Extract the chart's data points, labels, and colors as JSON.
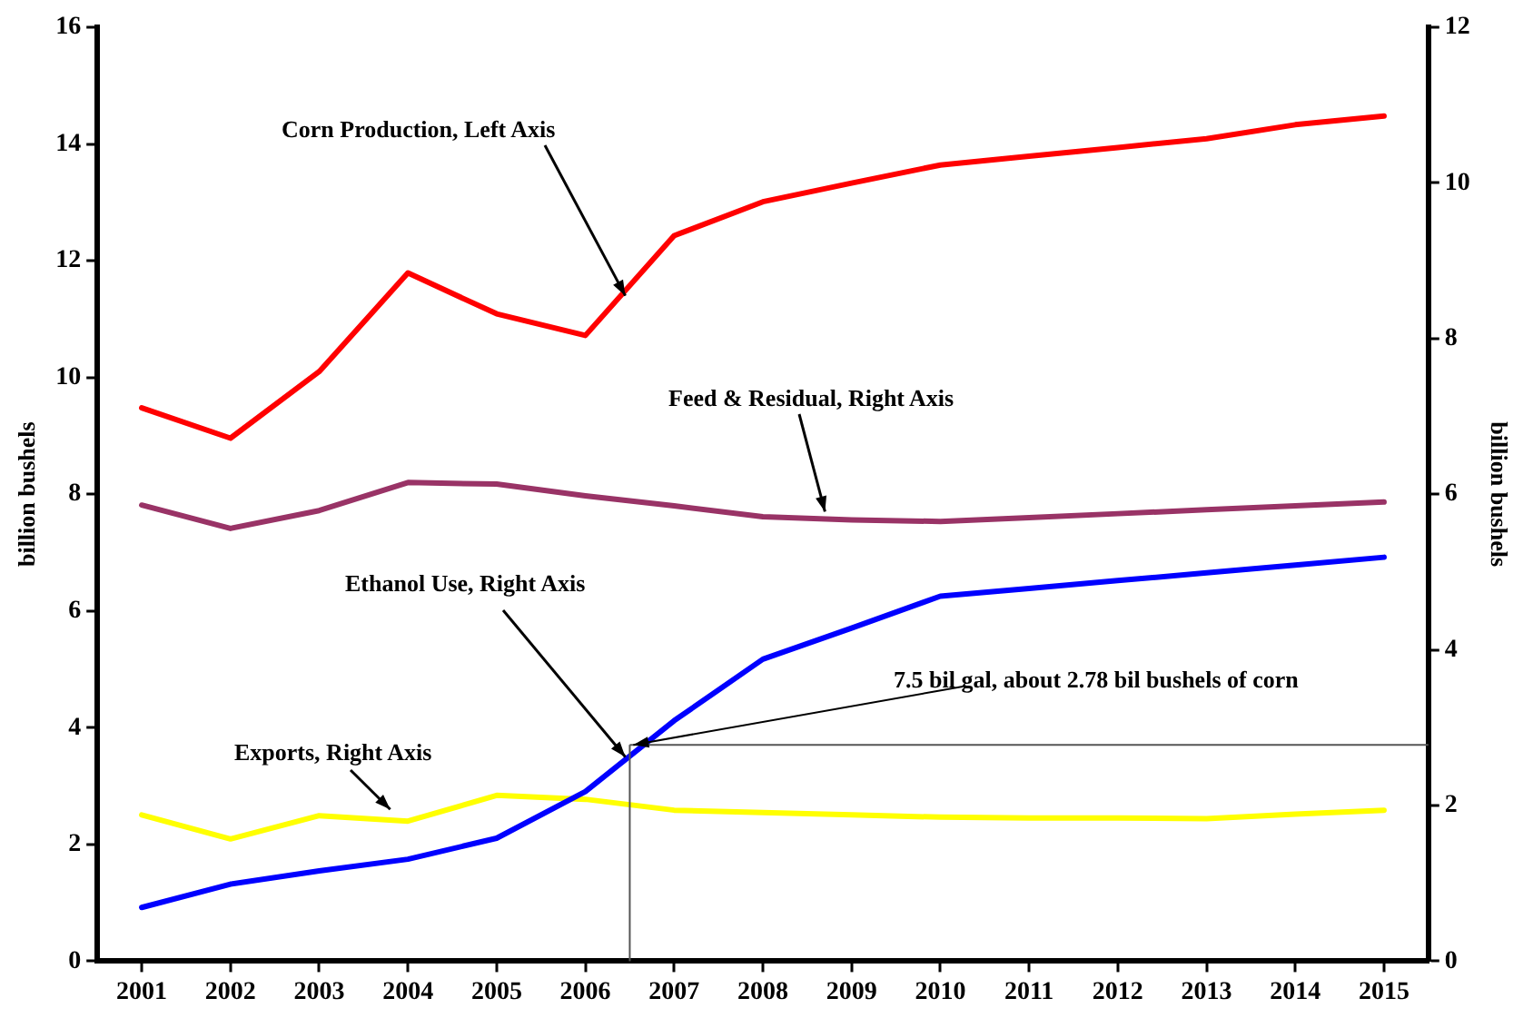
{
  "chart_data": {
    "type": "line",
    "x": [
      2001,
      2002,
      2003,
      2004,
      2005,
      2006,
      2007,
      2008,
      2009,
      2010,
      2011,
      2012,
      2013,
      2014,
      2015
    ],
    "xlim": [
      2000.5,
      2015.5
    ],
    "xticks": [
      2001,
      2002,
      2003,
      2004,
      2005,
      2006,
      2007,
      2008,
      2009,
      2010,
      2011,
      2012,
      2013,
      2014,
      2015
    ],
    "ylim": [
      0,
      16
    ],
    "yticks": [
      0,
      2,
      4,
      6,
      8,
      10,
      12,
      14,
      16
    ],
    "y2lim": [
      0,
      12
    ],
    "y2ticks": [
      0,
      2,
      4,
      6,
      8,
      10,
      12
    ],
    "ylabel": "billion bushels",
    "y2label": "billion bushels",
    "series": [
      {
        "color": "#ff0000",
        "values": [
          9.48,
          8.96,
          10.1,
          11.79,
          11.09,
          10.72,
          12.43,
          13.01,
          13.33,
          13.64,
          13.79,
          13.94,
          14.09,
          14.33,
          14.48
        ]
      },
      {
        "color": "#993366",
        "axis": "y2",
        "values": [
          5.86,
          5.56,
          5.79,
          6.15,
          6.13,
          5.98,
          5.85,
          5.71,
          5.67,
          5.65,
          5.7,
          5.75,
          5.8,
          5.85,
          5.9
        ]
      },
      {
        "color": "#0000ff",
        "axis": "y2",
        "values": [
          0.69,
          0.99,
          1.16,
          1.31,
          1.58,
          2.18,
          3.09,
          3.88,
          4.28,
          4.69,
          4.79,
          4.89,
          4.99,
          5.09,
          5.19
        ]
      },
      {
        "color": "#ffff00",
        "axis": "y2",
        "values": [
          1.88,
          1.57,
          1.87,
          1.8,
          2.13,
          2.08,
          1.94,
          1.91,
          1.88,
          1.85,
          1.84,
          1.84,
          1.83,
          1.89,
          1.94
        ]
      }
    ],
    "ref_lines": [
      {
        "axis": "x",
        "value": 2006.5,
        "color": "#555555"
      },
      {
        "axis": "y2",
        "value": 2.78,
        "label": "7.5 bil gal, about 2.78 bil bushels of corn",
        "color": "#555555"
      }
    ],
    "annotations": [
      {
        "text": "Corn Production, Left Axis",
        "x": 2006.45,
        "y": 11.4
      },
      {
        "text": "Feed & Residual, Right Axis",
        "x": 2008.7,
        "y": 7.7
      },
      {
        "text": "Ethanol Use, Right Axis",
        "x": 2006.45,
        "y": 3.5
      },
      {
        "text": "Exports, Right Axis",
        "x": 2003.8,
        "y": 2.6
      }
    ],
    "grid": false,
    "legend": false,
    "marker": "none",
    "line_style": "solid"
  }
}
